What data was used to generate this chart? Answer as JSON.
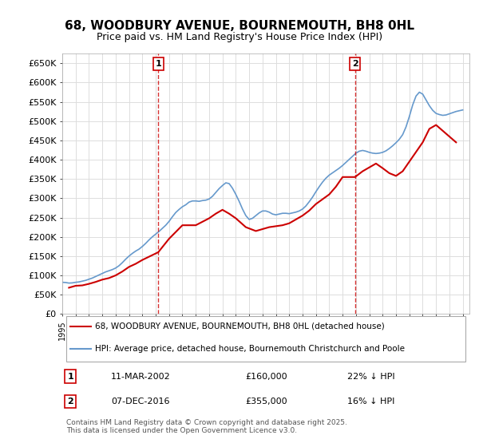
{
  "title": "68, WOODBURY AVENUE, BOURNEMOUTH, BH8 0HL",
  "subtitle": "Price paid vs. HM Land Registry's House Price Index (HPI)",
  "ylabel_prefix": "£",
  "yticks": [
    0,
    50000,
    100000,
    150000,
    200000,
    250000,
    300000,
    350000,
    400000,
    450000,
    500000,
    550000,
    600000,
    650000
  ],
  "ytick_labels": [
    "£0",
    "£50K",
    "£100K",
    "£150K",
    "£200K",
    "£250K",
    "£300K",
    "£350K",
    "£400K",
    "£450K",
    "£500K",
    "£550K",
    "£600K",
    "£650K"
  ],
  "xlim_start": 1995.0,
  "xlim_end": 2025.5,
  "ylim_min": 0,
  "ylim_max": 675000,
  "background_color": "#ffffff",
  "plot_bg_color": "#ffffff",
  "grid_color": "#dddddd",
  "hpi_color": "#6699cc",
  "price_color": "#cc0000",
  "marker1_x": 2002.19,
  "marker1_y": 160000,
  "marker2_x": 2016.93,
  "marker2_y": 355000,
  "marker1_label": "1",
  "marker2_label": "2",
  "marker_line_color": "#cc0000",
  "legend_price_label": "68, WOODBURY AVENUE, BOURNEMOUTH, BH8 0HL (detached house)",
  "legend_hpi_label": "HPI: Average price, detached house, Bournemouth Christchurch and Poole",
  "table_row1": [
    "1",
    "11-MAR-2002",
    "£160,000",
    "22% ↓ HPI"
  ],
  "table_row2": [
    "2",
    "07-DEC-2016",
    "£355,000",
    "16% ↓ HPI"
  ],
  "footer": "Contains HM Land Registry data © Crown copyright and database right 2025.\nThis data is licensed under the Open Government Licence v3.0.",
  "hpi_data_x": [
    1995.0,
    1995.25,
    1995.5,
    1995.75,
    1996.0,
    1996.25,
    1996.5,
    1996.75,
    1997.0,
    1997.25,
    1997.5,
    1997.75,
    1998.0,
    1998.25,
    1998.5,
    1998.75,
    1999.0,
    1999.25,
    1999.5,
    1999.75,
    2000.0,
    2000.25,
    2000.5,
    2000.75,
    2001.0,
    2001.25,
    2001.5,
    2001.75,
    2002.0,
    2002.25,
    2002.5,
    2002.75,
    2003.0,
    2003.25,
    2003.5,
    2003.75,
    2004.0,
    2004.25,
    2004.5,
    2004.75,
    2005.0,
    2005.25,
    2005.5,
    2005.75,
    2006.0,
    2006.25,
    2006.5,
    2006.75,
    2007.0,
    2007.25,
    2007.5,
    2007.75,
    2008.0,
    2008.25,
    2008.5,
    2008.75,
    2009.0,
    2009.25,
    2009.5,
    2009.75,
    2010.0,
    2010.25,
    2010.5,
    2010.75,
    2011.0,
    2011.25,
    2011.5,
    2011.75,
    2012.0,
    2012.25,
    2012.5,
    2012.75,
    2013.0,
    2013.25,
    2013.5,
    2013.75,
    2014.0,
    2014.25,
    2014.5,
    2014.75,
    2015.0,
    2015.25,
    2015.5,
    2015.75,
    2016.0,
    2016.25,
    2016.5,
    2016.75,
    2017.0,
    2017.25,
    2017.5,
    2017.75,
    2018.0,
    2018.25,
    2018.5,
    2018.75,
    2019.0,
    2019.25,
    2019.5,
    2019.75,
    2020.0,
    2020.25,
    2020.5,
    2020.75,
    2021.0,
    2021.25,
    2021.5,
    2021.75,
    2022.0,
    2022.25,
    2022.5,
    2022.75,
    2023.0,
    2023.25,
    2023.5,
    2023.75,
    2024.0,
    2024.25,
    2024.5,
    2024.75,
    2025.0
  ],
  "hpi_data_y": [
    82000,
    81500,
    80000,
    80500,
    82000,
    83000,
    85000,
    87000,
    90000,
    93000,
    97000,
    101000,
    105000,
    109000,
    112000,
    115000,
    119000,
    125000,
    133000,
    142000,
    150000,
    157000,
    163000,
    168000,
    175000,
    183000,
    192000,
    200000,
    207000,
    214000,
    222000,
    230000,
    240000,
    252000,
    263000,
    271000,
    278000,
    283000,
    290000,
    293000,
    293000,
    292000,
    294000,
    295000,
    298000,
    305000,
    315000,
    325000,
    333000,
    340000,
    338000,
    326000,
    310000,
    292000,
    272000,
    255000,
    245000,
    248000,
    255000,
    262000,
    267000,
    267000,
    264000,
    259000,
    257000,
    259000,
    261000,
    261000,
    260000,
    262000,
    264000,
    267000,
    272000,
    280000,
    291000,
    303000,
    317000,
    330000,
    342000,
    352000,
    360000,
    366000,
    372000,
    378000,
    385000,
    393000,
    401000,
    409000,
    417000,
    422000,
    424000,
    422000,
    419000,
    417000,
    416000,
    417000,
    419000,
    423000,
    429000,
    436000,
    444000,
    453000,
    465000,
    485000,
    512000,
    542000,
    565000,
    575000,
    570000,
    555000,
    540000,
    528000,
    520000,
    517000,
    515000,
    516000,
    519000,
    522000,
    525000,
    527000,
    529000
  ],
  "price_data_x": [
    1995.5,
    1996.0,
    1996.5,
    1997.0,
    1997.5,
    1998.0,
    1998.5,
    1999.0,
    1999.5,
    2000.0,
    2000.5,
    2001.0,
    2002.19,
    2003.0,
    2004.0,
    2005.0,
    2006.0,
    2006.5,
    2007.0,
    2007.5,
    2008.0,
    2008.75,
    2009.5,
    2010.0,
    2010.5,
    2011.5,
    2012.0,
    2013.0,
    2013.5,
    2014.0,
    2015.0,
    2015.5,
    2016.0,
    2016.93,
    2017.5,
    2018.0,
    2018.5,
    2019.0,
    2019.5,
    2020.0,
    2020.5,
    2021.0,
    2021.5,
    2022.0,
    2022.5,
    2023.0,
    2023.5,
    2024.0,
    2024.5
  ],
  "price_data_y": [
    68000,
    73000,
    74000,
    78000,
    83000,
    89000,
    93000,
    100000,
    110000,
    122000,
    130000,
    140000,
    160000,
    195000,
    230000,
    230000,
    248000,
    260000,
    270000,
    260000,
    248000,
    225000,
    215000,
    220000,
    225000,
    230000,
    235000,
    255000,
    268000,
    285000,
    310000,
    330000,
    355000,
    355000,
    370000,
    380000,
    390000,
    378000,
    365000,
    358000,
    370000,
    395000,
    420000,
    445000,
    480000,
    490000,
    475000,
    460000,
    445000
  ]
}
